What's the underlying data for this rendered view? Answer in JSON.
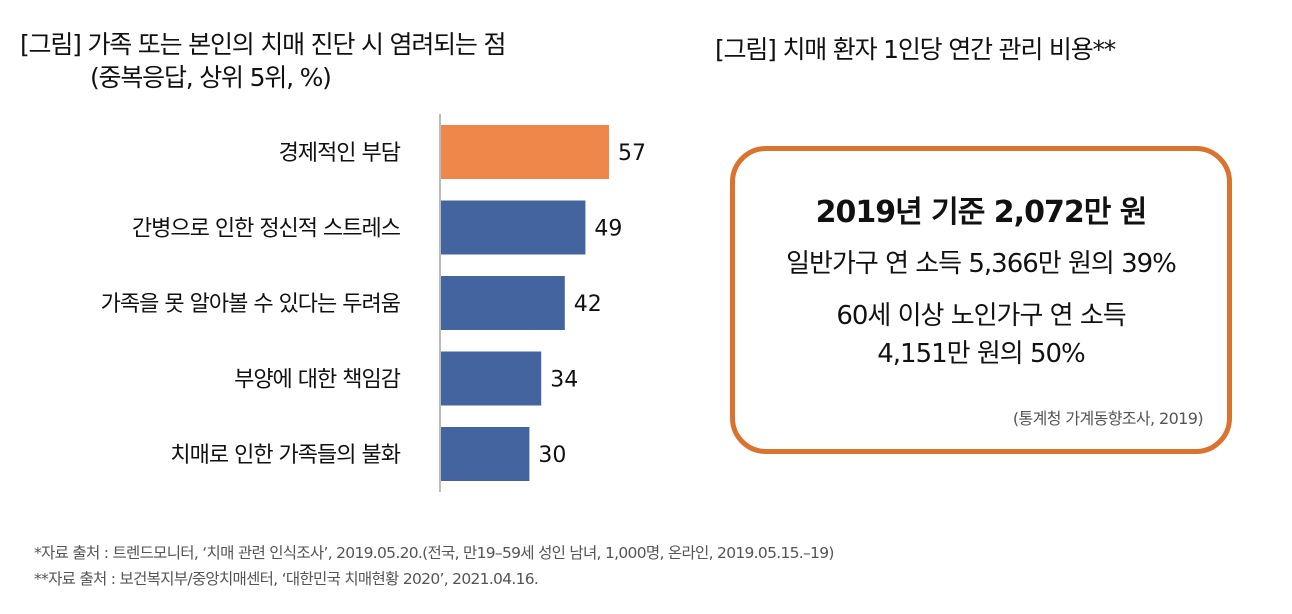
{
  "left_panel": {
    "title_line1": "[그림] 가족 또는 본인의 치매 진단 시 염려되는 점",
    "title_line2": "(중복응답, 상위 5위, %)"
  },
  "right_panel": {
    "title": "[그림] 치매 환자 1인당 연간 관리 비용**",
    "headline": "2019년 기준 2,072만 원",
    "line1": "일반가구 연 소득 5,366만 원의 39%",
    "line2a": "60세 이상 노인가구 연 소득",
    "line2b": "4,151만 원의 50%",
    "source": "(통계청 가계동향조사, 2019)",
    "border_color": "#d9732e"
  },
  "footnotes": {
    "note1": "*자료 출처 : 트렌드모니터, ‘치매 관련 인식조사’, 2019.05.20.(전국, 만19–59세 성인 남녀, 1,000명, 온라인, 2019.05.15.–19)",
    "note2": "**자료 출처 : 보건복지부/중앙치매센터, ‘대한민국 치매현황 2020’, 2021.04.16."
  },
  "chart_data": {
    "type": "bar",
    "orientation": "horizontal",
    "title": "[그림] 가족 또는 본인의 치매 진단 시 염려되는 점 (중복응답, 상위 5위, %)",
    "categories": [
      "경제적인 부담",
      "간병으로 인한 정신적 스트레스",
      "가족을 못 알아볼 수 있다는 두려움",
      "부양에 대한 책임감",
      "치매로 인한 가족들의 불화"
    ],
    "values": [
      57,
      49,
      42,
      34,
      30
    ],
    "value_labels": [
      "57",
      "49",
      "42",
      "34",
      "30"
    ],
    "colors": [
      "#f0874a",
      "#43649e",
      "#43649e",
      "#43649e",
      "#43649e"
    ],
    "axis_color": "#bbbbbb",
    "xlabel": "",
    "ylabel": "",
    "xlim": [
      0,
      60
    ],
    "grid": false,
    "legend": "none"
  }
}
